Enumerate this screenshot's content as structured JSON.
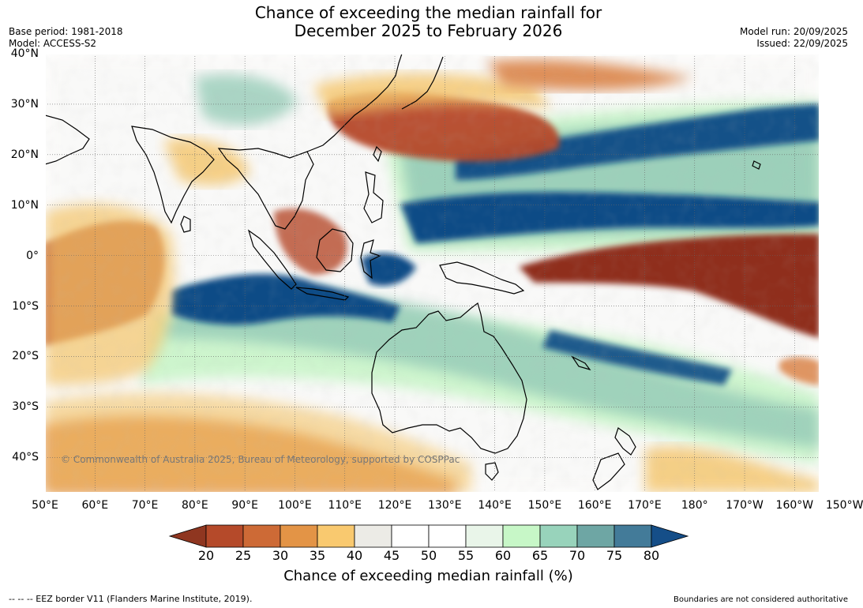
{
  "header": {
    "title_line1": "Chance of exceeding the median rainfall for",
    "title_line2": "December 2025 to February 2026",
    "base_period": "Base period: 1981-2018",
    "model": "Model: ACCESS-S2",
    "model_run": "Model run: 20/09/2025",
    "issued": "Issued: 22/09/2025"
  },
  "map": {
    "lat_labels": [
      "40°N",
      "30°N",
      "20°N",
      "10°N",
      "0°",
      "10°S",
      "20°S",
      "30°S",
      "40°S"
    ],
    "lon_labels": [
      "50°E",
      "60°E",
      "70°E",
      "80°E",
      "90°E",
      "100°E",
      "110°E",
      "120°E",
      "130°E",
      "140°E",
      "150°E",
      "160°E",
      "170°E",
      "180°",
      "170°W",
      "160°W",
      "150°W"
    ],
    "copyright": "© Commonwealth of Australia 2025, Bureau of Meteorology, supported by COSPPac",
    "colors": {
      "dry_strong": "#8f2d1f",
      "dry": "#b6482a",
      "dry_mid": "#d97d3e",
      "dry_light": "#f4c56a",
      "neutral_gray": "#ebe9e4",
      "wet_light": "#c9f5c9",
      "wet_mid": "#97ccb8",
      "wet": "#5c97a3",
      "wet_strong": "#0e4c86",
      "coast": "#000000"
    }
  },
  "legend": {
    "ticks": [
      "20",
      "25",
      "30",
      "35",
      "40",
      "45",
      "50",
      "55",
      "60",
      "65",
      "70",
      "75",
      "80"
    ],
    "colors": [
      "#8f3620",
      "#b54a2a",
      "#cd6a36",
      "#e39446",
      "#f9c96f",
      "#ecebe6",
      "#ffffff",
      "#ffffff",
      "#e9f5e9",
      "#c7f7c7",
      "#98d3bb",
      "#6ea6a4",
      "#437b99",
      "#154e88"
    ],
    "title": "Chance of exceeding median rainfall (%)"
  },
  "footer": {
    "eez": "--  --  -- EEZ border V11 (Flanders Marine Institute, 2019).",
    "boundaries": "Boundaries are not considered authoritative"
  }
}
